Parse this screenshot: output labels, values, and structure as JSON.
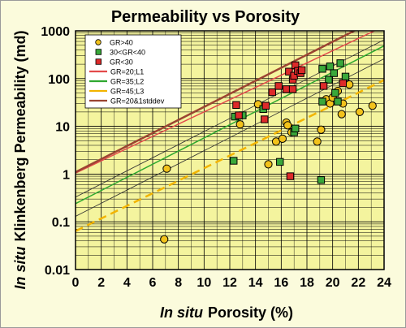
{
  "chart_data": {
    "type": "scatter",
    "title": "Permeability vs Porosity",
    "xlabel": {
      "italic": "In situ",
      "rest": "Porosity (%)"
    },
    "ylabel": {
      "italic": "In situ",
      "rest": "Klinkenberg  Permeability  (md)"
    },
    "xlim": [
      0,
      24
    ],
    "ylim": [
      0.01,
      1000
    ],
    "yscale": "log",
    "x_ticks": [
      "0",
      "2",
      "4",
      "6",
      "8",
      "10",
      "12",
      "14",
      "16",
      "18",
      "20",
      "22",
      "24"
    ],
    "y_ticks": [
      "0.01",
      "0.1",
      "1",
      "10",
      "100",
      "1000"
    ],
    "grid": true,
    "legend_position": "top-left",
    "plot_background": "#f4f49e",
    "series": [
      {
        "name": "GR>40",
        "marker": "circle",
        "color": "#f2c21b",
        "points": [
          [
            6.9,
            0.043
          ],
          [
            7.1,
            1.3
          ],
          [
            12.8,
            11
          ],
          [
            14.2,
            29
          ],
          [
            15.0,
            1.6
          ],
          [
            15.6,
            4.8
          ],
          [
            16.1,
            5.5
          ],
          [
            16.4,
            12
          ],
          [
            16.5,
            10.5
          ],
          [
            16.8,
            7.5
          ],
          [
            18.8,
            4.8
          ],
          [
            19.1,
            8.5
          ],
          [
            19.5,
            37
          ],
          [
            19.8,
            30
          ],
          [
            20.0,
            40
          ],
          [
            20.4,
            55
          ],
          [
            20.7,
            18
          ],
          [
            20.8,
            30
          ],
          [
            21.3,
            75
          ],
          [
            22.1,
            20
          ],
          [
            23.1,
            27
          ]
        ]
      },
      {
        "name": "30<GR<40",
        "marker": "square",
        "color": "#3aa83a",
        "points": [
          [
            12.3,
            1.9
          ],
          [
            12.4,
            16
          ],
          [
            13.0,
            17
          ],
          [
            14.6,
            23
          ],
          [
            15.9,
            1.8
          ],
          [
            17.0,
            7.5
          ],
          [
            17.1,
            9
          ],
          [
            19.1,
            0.75
          ],
          [
            19.2,
            33
          ],
          [
            19.2,
            160
          ],
          [
            19.7,
            95
          ],
          [
            19.8,
            180
          ],
          [
            20.1,
            130
          ],
          [
            20.2,
            50
          ],
          [
            20.4,
            33
          ],
          [
            20.6,
            210
          ],
          [
            21.0,
            110
          ]
        ]
      },
      {
        "name": "GR<30",
        "marker": "square",
        "color": "#dd2a2a",
        "points": [
          [
            12.5,
            28
          ],
          [
            12.7,
            17
          ],
          [
            14.7,
            14
          ],
          [
            14.8,
            27
          ],
          [
            15.3,
            52
          ],
          [
            15.8,
            70
          ],
          [
            16.4,
            60
          ],
          [
            16.6,
            140
          ],
          [
            16.7,
            0.9
          ],
          [
            16.9,
            60
          ],
          [
            16.9,
            95
          ],
          [
            17.0,
            115
          ],
          [
            17.1,
            190
          ],
          [
            17.3,
            145
          ],
          [
            17.5,
            130
          ],
          [
            17.6,
            150
          ],
          [
            19.3,
            70
          ],
          [
            20.8,
            80
          ]
        ]
      }
    ],
    "lines": [
      {
        "name": "GR=20;L1",
        "color": "#e34a4a",
        "width": 1.5,
        "dash": "",
        "p1": [
          0,
          1.05
        ],
        "p2": [
          24,
          1250
        ],
        "in_legend": true
      },
      {
        "name": "GR=35;L2",
        "color": "#2fa82f",
        "width": 1.5,
        "dash": "",
        "p1": [
          0,
          0.24
        ],
        "p2": [
          24,
          485
        ],
        "in_legend": true
      },
      {
        "name": "GR=45;L3",
        "color": "#f2b400",
        "width": 2.5,
        "dash": "10,6",
        "p1": [
          0,
          0.064
        ],
        "p2": [
          24,
          93
        ],
        "in_legend": true
      },
      {
        "name": "GR=20&1stddev",
        "color": "#9b4432",
        "width": 2.5,
        "dash": "",
        "p1": [
          0,
          1.1
        ],
        "p2": [
          22.5,
          1300
        ],
        "in_legend": true
      },
      {
        "name": "",
        "color": "#333333",
        "width": 0.8,
        "dash": "",
        "p1": [
          0,
          0.33
        ],
        "p2": [
          24,
          650
        ],
        "in_legend": false
      },
      {
        "name": "",
        "color": "#333333",
        "width": 0.8,
        "dash": "",
        "p1": [
          0,
          0.13
        ],
        "p2": [
          24,
          260
        ],
        "in_legend": false
      }
    ]
  }
}
